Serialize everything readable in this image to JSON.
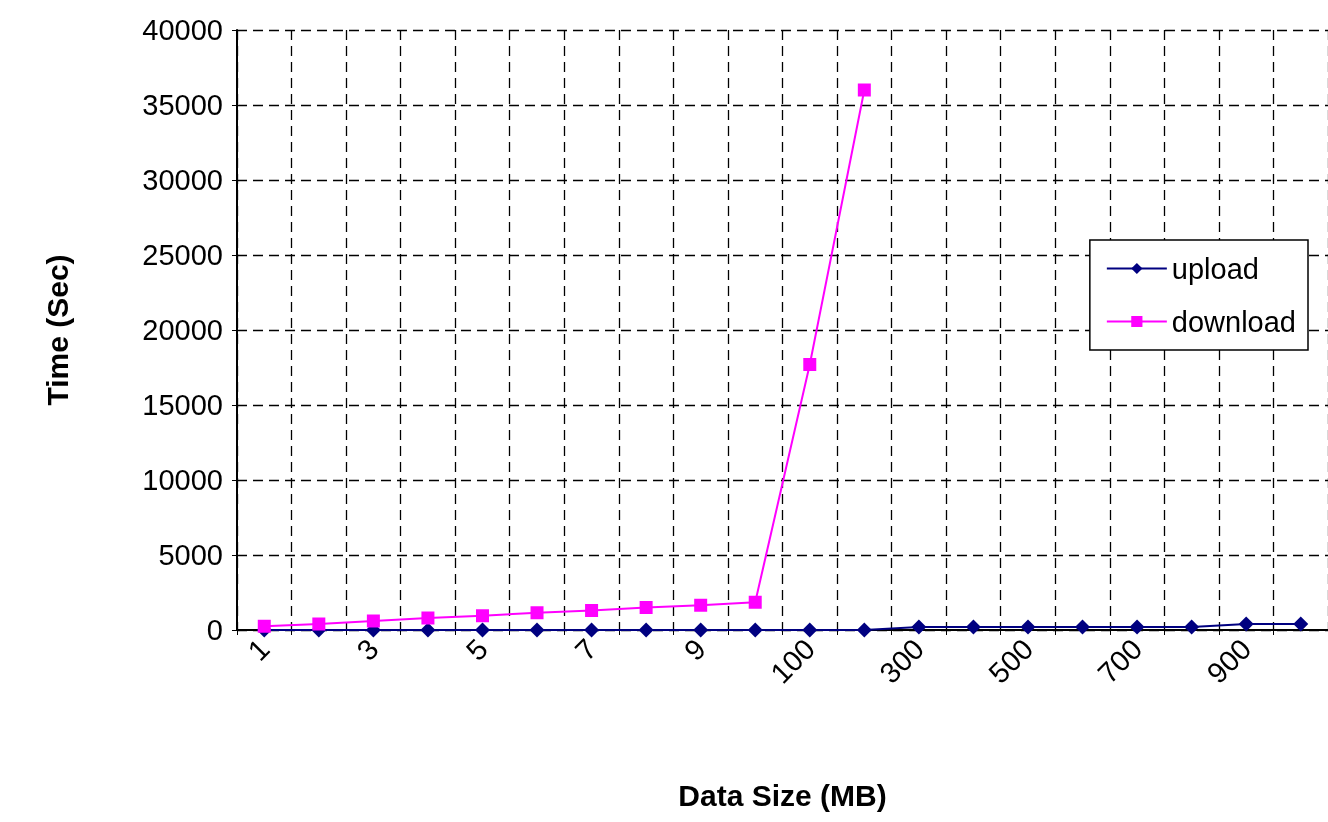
{
  "chart_data": {
    "type": "line",
    "xlabel": "Data Size (MB)",
    "ylabel": "Time (Sec)",
    "categories": [
      "1",
      null,
      "3",
      null,
      "5",
      null,
      "7",
      null,
      "9",
      null,
      "100",
      null,
      "300",
      null,
      "500",
      null,
      "700",
      null,
      "900",
      null
    ],
    "series": [
      {
        "name": "upload",
        "color": "#000080",
        "marker": "diamond",
        "values": [
          0,
          0,
          0,
          0,
          0,
          0,
          0,
          0,
          0,
          0,
          0,
          0,
          200,
          200,
          200,
          200,
          200,
          200,
          400,
          400
        ]
      },
      {
        "name": "download",
        "color": "#ff00ff",
        "marker": "square",
        "values": [
          250,
          400,
          600,
          800,
          950,
          1150,
          1300,
          1500,
          1650,
          1850,
          17700,
          36000,
          null,
          null,
          null,
          null,
          null,
          null,
          null,
          null
        ]
      }
    ],
    "ylim": [
      0,
      40000
    ],
    "yticks": [
      0,
      5000,
      10000,
      15000,
      20000,
      25000,
      30000,
      35000,
      40000
    ],
    "grid": true,
    "legend": "right",
    "line_style": "solid"
  }
}
